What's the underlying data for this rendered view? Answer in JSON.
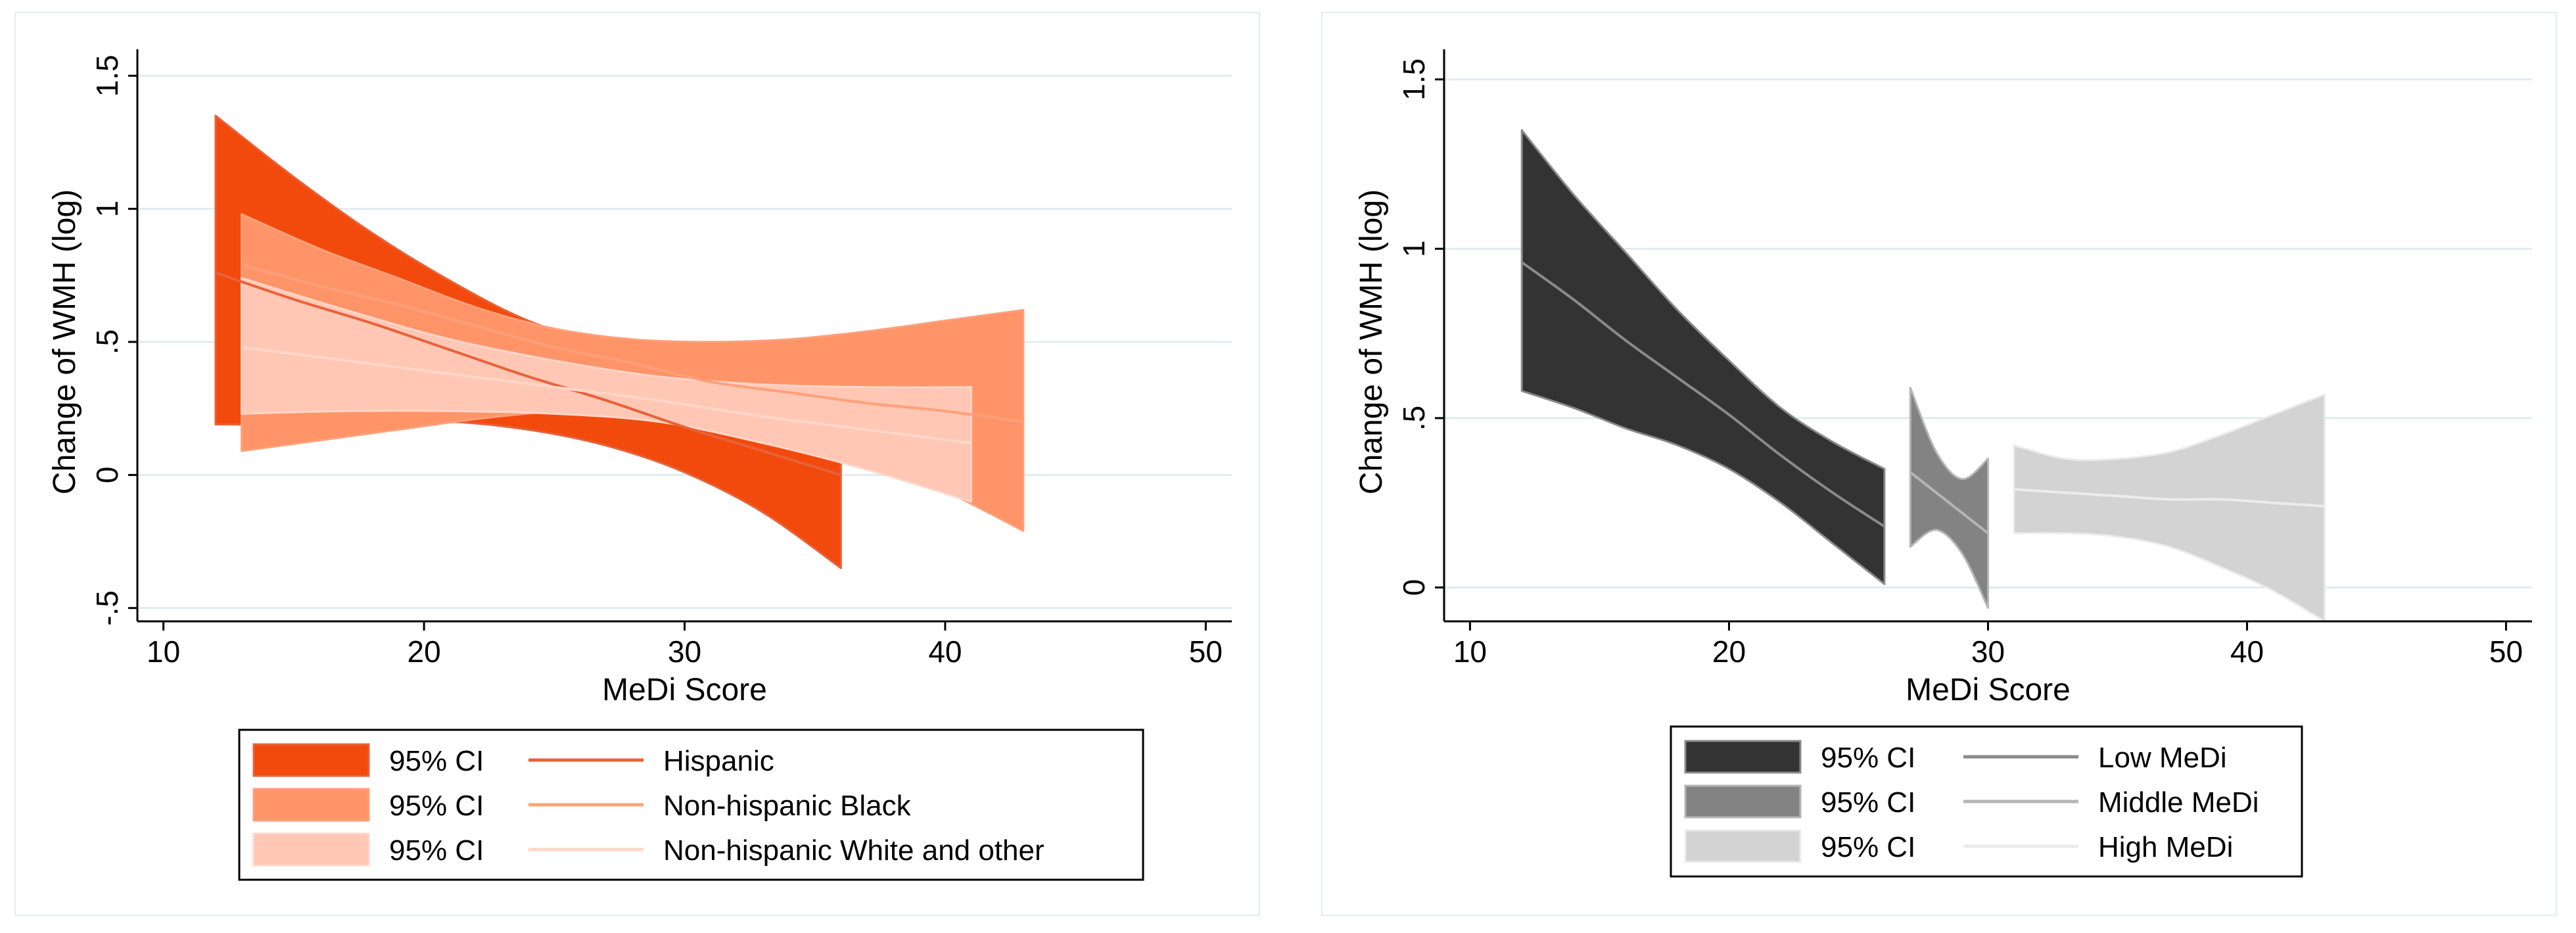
{
  "chart_data": [
    {
      "type": "area",
      "xlabel": "MeDi Score",
      "ylabel": "Change of WMH (log)",
      "xlim": [
        9,
        51
      ],
      "ylim": [
        -0.55,
        1.55
      ],
      "xticks": [
        "10",
        "20",
        "30",
        "40",
        "50"
      ],
      "yticks": [
        "-.5",
        "0",
        ".5",
        "1",
        "1.5"
      ],
      "grid": "horizontal",
      "legend_position": "bottom",
      "series": [
        {
          "name": "Hispanic",
          "ci_label": "95% CI",
          "ci_color": "#f24a0d",
          "line_color": "#e8623a",
          "x": [
            12,
            15,
            18,
            21,
            24,
            27,
            30,
            33,
            36
          ],
          "fit": [
            0.76,
            0.66,
            0.57,
            0.47,
            0.37,
            0.28,
            0.18,
            0.09,
            0.0
          ],
          "lower": [
            0.19,
            0.19,
            0.2,
            0.2,
            0.17,
            0.11,
            0.01,
            -0.14,
            -0.35
          ],
          "upper": [
            1.35,
            1.12,
            0.91,
            0.73,
            0.58,
            0.49,
            0.44,
            0.37,
            0.29
          ]
        },
        {
          "name": "Non-hispanic Black",
          "ci_label": "95% CI",
          "ci_color": "#ff9468",
          "line_color": "#ffa07a",
          "x": [
            13,
            16,
            19,
            22,
            25,
            28,
            31,
            34,
            37,
            40,
            43
          ],
          "fit": [
            0.79,
            0.71,
            0.64,
            0.56,
            0.48,
            0.42,
            0.35,
            0.31,
            0.27,
            0.24,
            0.2
          ],
          "lower": [
            0.09,
            0.13,
            0.17,
            0.21,
            0.24,
            0.26,
            0.24,
            0.18,
            0.07,
            -0.06,
            -0.21
          ],
          "upper": [
            0.98,
            0.85,
            0.74,
            0.63,
            0.55,
            0.51,
            0.5,
            0.51,
            0.54,
            0.58,
            0.62
          ]
        },
        {
          "name": "Non-hispanic White and other",
          "ci_label": "95% CI",
          "ci_color": "#ffc7b4",
          "line_color": "#ffd6c8",
          "x": [
            13,
            17,
            21,
            25,
            29,
            33,
            37,
            41
          ],
          "fit": [
            0.48,
            0.43,
            0.38,
            0.33,
            0.28,
            0.22,
            0.17,
            0.12
          ],
          "lower": [
            0.23,
            0.24,
            0.24,
            0.23,
            0.2,
            0.12,
            0.02,
            -0.1
          ],
          "upper": [
            0.74,
            0.62,
            0.51,
            0.43,
            0.37,
            0.34,
            0.33,
            0.33
          ]
        }
      ]
    },
    {
      "type": "area",
      "xlabel": "MeDi Score",
      "ylabel": "Change of WMH (log)",
      "xlim": [
        9,
        51
      ],
      "ylim": [
        -0.1,
        1.55
      ],
      "xticks": [
        "10",
        "20",
        "30",
        "40",
        "50"
      ],
      "yticks": [
        "0",
        ".5",
        "1",
        "1.5"
      ],
      "grid": "horizontal",
      "legend_position": "bottom",
      "series": [
        {
          "name": "Low MeDi",
          "ci_label": "95% CI",
          "ci_color": "#333333",
          "line_color": "#8a8a8a",
          "x": [
            12,
            14,
            16,
            18,
            20,
            22,
            24,
            26
          ],
          "fit": [
            0.96,
            0.85,
            0.73,
            0.62,
            0.51,
            0.39,
            0.28,
            0.18
          ],
          "lower": [
            0.58,
            0.53,
            0.47,
            0.42,
            0.35,
            0.25,
            0.13,
            0.01
          ],
          "upper": [
            1.35,
            1.16,
            0.99,
            0.82,
            0.67,
            0.53,
            0.43,
            0.35
          ]
        },
        {
          "name": "Middle MeDi",
          "ci_label": "95% CI",
          "ci_color": "#838383",
          "line_color": "#b5b5b5",
          "x": [
            27,
            28,
            29,
            30
          ],
          "fit": [
            0.34,
            0.28,
            0.22,
            0.16
          ],
          "lower": [
            0.12,
            0.17,
            0.1,
            -0.06
          ],
          "upper": [
            0.59,
            0.4,
            0.32,
            0.38
          ]
        },
        {
          "name": "High MeDi",
          "ci_label": "95% CI",
          "ci_color": "#d3d3d3",
          "line_color": "#ececec",
          "x": [
            31,
            33,
            35,
            37,
            39,
            41,
            43
          ],
          "fit": [
            0.29,
            0.28,
            0.27,
            0.26,
            0.26,
            0.25,
            0.24
          ],
          "lower": [
            0.16,
            0.16,
            0.15,
            0.12,
            0.06,
            -0.01,
            -0.1
          ],
          "upper": [
            0.42,
            0.38,
            0.38,
            0.4,
            0.45,
            0.51,
            0.57
          ]
        }
      ]
    }
  ]
}
